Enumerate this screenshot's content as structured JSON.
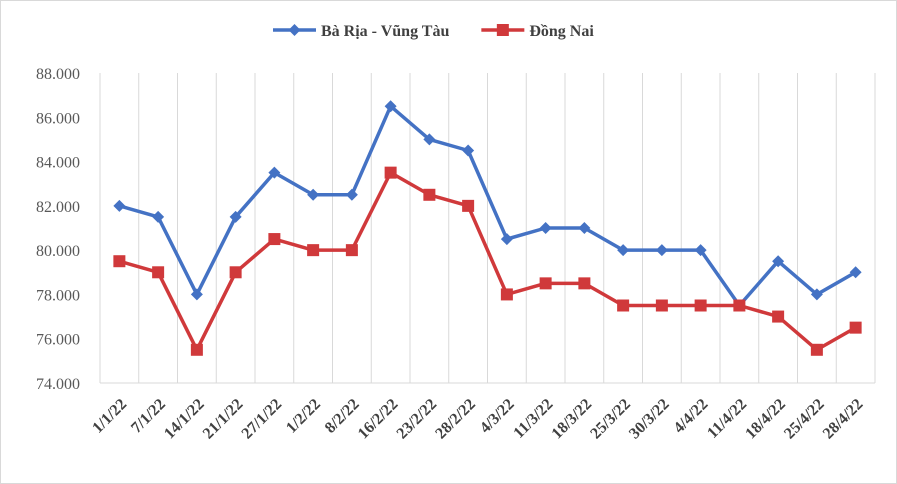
{
  "chart_data": {
    "type": "line",
    "title": "",
    "xlabel": "",
    "ylabel": "",
    "categories": [
      "1/1/22",
      "7/1/22",
      "14/1/22",
      "21/1/22",
      "27/1/22",
      "1/2/22",
      "8/2/22",
      "16/2/22",
      "23/2/22",
      "28/2/22",
      "4/3/22",
      "11/3/22",
      "18/3/22",
      "25/3/22",
      "30/3/22",
      "4/4/22",
      "11/4/22",
      "18/4/22",
      "25/4/22",
      "28/4/22"
    ],
    "y_ticks": [
      "74.000",
      "76.000",
      "78.000",
      "80.000",
      "82.000",
      "84.000",
      "86.000",
      "88.000"
    ],
    "ylim": [
      74000,
      88000
    ],
    "grid": "vertical",
    "legend_position": "top",
    "series": [
      {
        "name": "Bà Rịa - Vũng Tàu",
        "color": "#4472c4",
        "marker": "diamond",
        "values": [
          82000,
          81500,
          78000,
          81500,
          83500,
          82500,
          82500,
          86500,
          85000,
          84500,
          80500,
          81000,
          81000,
          80000,
          80000,
          80000,
          77500,
          79500,
          78000,
          79000
        ]
      },
      {
        "name": "Đồng Nai",
        "color": "#d0393b",
        "marker": "square",
        "values": [
          79500,
          79000,
          75500,
          79000,
          80500,
          80000,
          80000,
          83500,
          82500,
          82000,
          78000,
          78500,
          78500,
          77500,
          77500,
          77500,
          77500,
          77000,
          75500,
          76500
        ]
      }
    ]
  }
}
